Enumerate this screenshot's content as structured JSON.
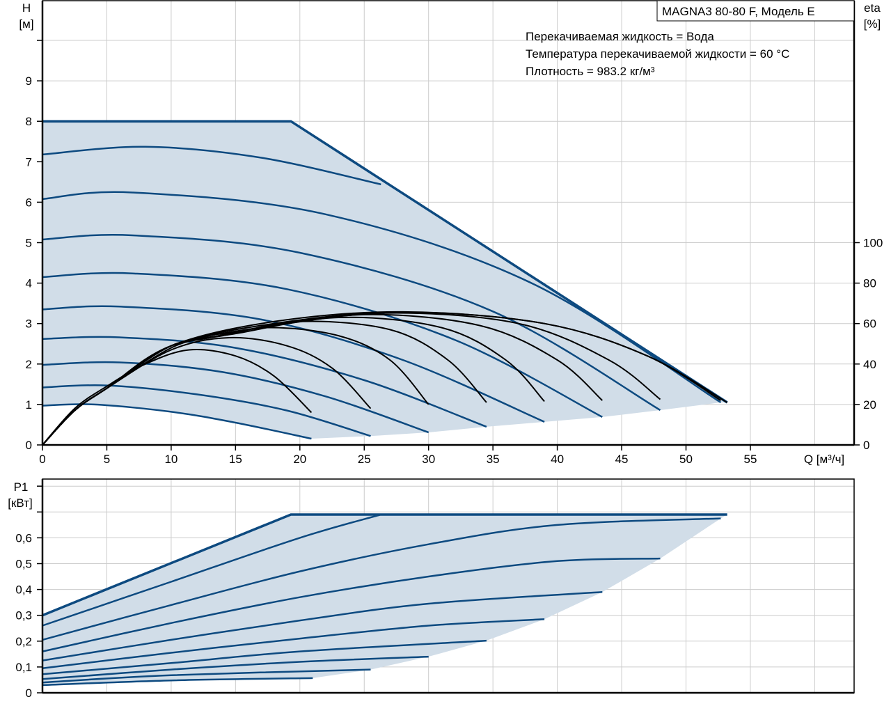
{
  "colors": {
    "fill": "#d1dde8",
    "curve": "#0d4a80",
    "eta_curve": "#000000",
    "grid": "#cccccc"
  },
  "chart_data": [
    {
      "type": "line",
      "title": "MAGNA3 80-80 F, Модель E",
      "info": [
        "Перекачиваемая жидкость = Вода",
        "Температура перекачиваемой жидкости = 60 °C",
        "Плотность = 983.2 кг/м³"
      ],
      "xlabel": "Q [м³/ч]",
      "ylabel": "H",
      "ylabel_unit": "[м]",
      "y2label": "eta",
      "y2label_unit": "[%]",
      "xlim": [
        0,
        63
      ],
      "ylim": [
        0,
        11
      ],
      "y2lim": [
        0,
        220
      ],
      "xticks": [
        0,
        5,
        10,
        15,
        20,
        25,
        30,
        35,
        40,
        45,
        50,
        55
      ],
      "yticks": [
        0,
        1,
        2,
        3,
        4,
        5,
        6,
        7,
        8,
        9
      ],
      "y2ticks": [
        0,
        20,
        40,
        60,
        80,
        100
      ],
      "grid": true,
      "max_curve": [
        [
          0,
          8
        ],
        [
          19.3,
          8
        ],
        [
          53.2,
          1.05
        ]
      ],
      "head_curves": [
        [
          [
            0,
            7.18
          ],
          [
            8,
            7.37
          ],
          [
            17,
            7.1
          ],
          [
            26.3,
            6.44
          ]
        ],
        [
          [
            0,
            6.08
          ],
          [
            7,
            6.24
          ],
          [
            22,
            5.7
          ],
          [
            38,
            4.0
          ],
          [
            52.7,
            1.05
          ]
        ],
        [
          [
            0,
            5.08
          ],
          [
            7,
            5.18
          ],
          [
            20,
            4.75
          ],
          [
            35,
            3.3
          ],
          [
            48,
            0.86
          ]
        ],
        [
          [
            0,
            4.15
          ],
          [
            7,
            4.24
          ],
          [
            19,
            3.85
          ],
          [
            32,
            2.6
          ],
          [
            43.5,
            0.69
          ]
        ],
        [
          [
            0,
            3.35
          ],
          [
            6,
            3.42
          ],
          [
            17,
            3.1
          ],
          [
            28,
            2.1
          ],
          [
            39,
            0.57
          ]
        ],
        [
          [
            0,
            2.62
          ],
          [
            6,
            2.66
          ],
          [
            15,
            2.4
          ],
          [
            25,
            1.6
          ],
          [
            34.5,
            0.45
          ]
        ],
        [
          [
            0,
            1.98
          ],
          [
            6,
            2.04
          ],
          [
            14,
            1.8
          ],
          [
            22,
            1.2
          ],
          [
            30,
            0.31
          ]
        ],
        [
          [
            0,
            1.42
          ],
          [
            5,
            1.47
          ],
          [
            12,
            1.25
          ],
          [
            19,
            0.85
          ],
          [
            25.5,
            0.22
          ]
        ],
        [
          [
            0,
            0.97
          ],
          [
            4,
            1.0
          ],
          [
            10,
            0.82
          ],
          [
            15,
            0.55
          ],
          [
            20.9,
            0.155
          ]
        ]
      ],
      "eta_curves": [
        [
          [
            0,
            0
          ],
          [
            2.5,
            17
          ],
          [
            5,
            28
          ],
          [
            10,
            49
          ],
          [
            18,
            61
          ],
          [
            28,
            65.8
          ],
          [
            39,
            60
          ],
          [
            47,
            44
          ],
          [
            53.2,
            21
          ]
        ],
        [
          [
            0,
            0
          ],
          [
            2.5,
            17
          ],
          [
            5,
            28
          ],
          [
            10,
            49
          ],
          [
            18,
            60
          ],
          [
            28,
            65.6
          ],
          [
            39,
            60
          ],
          [
            47,
            44
          ],
          [
            52.7,
            22
          ]
        ],
        [
          [
            0,
            0
          ],
          [
            2.5,
            17
          ],
          [
            5,
            28
          ],
          [
            10,
            49
          ],
          [
            18,
            59
          ],
          [
            27,
            65.2
          ],
          [
            37,
            60
          ],
          [
            44,
            42
          ],
          [
            48,
            22.5
          ]
        ],
        [
          [
            0,
            0
          ],
          [
            2.5,
            17
          ],
          [
            5,
            28
          ],
          [
            10,
            49
          ],
          [
            16,
            57
          ],
          [
            25,
            64.4
          ],
          [
            34,
            59
          ],
          [
            40,
            42
          ],
          [
            43.5,
            22
          ]
        ],
        [
          [
            0,
            0
          ],
          [
            2.5,
            17
          ],
          [
            5,
            28
          ],
          [
            10,
            49
          ],
          [
            15,
            55
          ],
          [
            23,
            63
          ],
          [
            31,
            58
          ],
          [
            36,
            42
          ],
          [
            39,
            21.5
          ]
        ],
        [
          [
            0,
            0
          ],
          [
            2.5,
            17
          ],
          [
            5,
            28
          ],
          [
            10,
            49
          ],
          [
            14,
            54
          ],
          [
            20,
            61
          ],
          [
            27,
            57
          ],
          [
            31.5,
            42
          ],
          [
            34.5,
            21
          ]
        ],
        [
          [
            0,
            0
          ],
          [
            2.5,
            17
          ],
          [
            5,
            28
          ],
          [
            10,
            48
          ],
          [
            13,
            53
          ],
          [
            17.5,
            58
          ],
          [
            23,
            54
          ],
          [
            27,
            42
          ],
          [
            30,
            20
          ]
        ],
        [
          [
            0,
            0
          ],
          [
            2.5,
            17
          ],
          [
            5,
            28
          ],
          [
            10,
            47
          ],
          [
            14.5,
            53
          ],
          [
            19,
            49
          ],
          [
            22.5,
            38
          ],
          [
            25.5,
            18
          ]
        ],
        [
          [
            0,
            0
          ],
          [
            2.5,
            18
          ],
          [
            5,
            29
          ],
          [
            8,
            40
          ],
          [
            11.4,
            47
          ],
          [
            15,
            44
          ],
          [
            18,
            34
          ],
          [
            20.9,
            16
          ]
        ]
      ]
    },
    {
      "type": "line",
      "ylabel": "P1",
      "ylabel_unit": "[кВт]",
      "xlim": [
        0,
        63
      ],
      "ylim": [
        0,
        0.82
      ],
      "yticks": [
        0,
        0.1,
        0.2,
        0.3,
        0.4,
        0.5,
        0.6,
        0.7,
        0.8
      ],
      "ytick_labels": [
        "0",
        "0,1",
        "0,2",
        "0,3",
        "0,4",
        "0,5",
        "0,6",
        "",
        ""
      ],
      "xticks": [
        0,
        5,
        10,
        15,
        20,
        25,
        30,
        35,
        40,
        45,
        50,
        55,
        60
      ],
      "grid": true,
      "max_curve": [
        [
          0,
          0.3
        ],
        [
          19.3,
          0.69
        ],
        [
          53.2,
          0.69
        ]
      ],
      "power_curves": [
        [
          [
            0,
            0.26
          ],
          [
            10,
            0.43
          ],
          [
            20,
            0.6
          ],
          [
            26.3,
            0.69
          ]
        ],
        [
          [
            0,
            0.205
          ],
          [
            10,
            0.34
          ],
          [
            20,
            0.47
          ],
          [
            30,
            0.575
          ],
          [
            40,
            0.65
          ],
          [
            52.7,
            0.675
          ]
        ],
        [
          [
            0,
            0.16
          ],
          [
            10,
            0.27
          ],
          [
            20,
            0.37
          ],
          [
            30,
            0.45
          ],
          [
            40,
            0.51
          ],
          [
            48,
            0.52
          ]
        ],
        [
          [
            0,
            0.125
          ],
          [
            10,
            0.205
          ],
          [
            20,
            0.28
          ],
          [
            30,
            0.345
          ],
          [
            43.5,
            0.39
          ]
        ],
        [
          [
            0,
            0.095
          ],
          [
            10,
            0.155
          ],
          [
            20,
            0.21
          ],
          [
            30,
            0.26
          ],
          [
            39,
            0.285
          ]
        ],
        [
          [
            0,
            0.072
          ],
          [
            10,
            0.115
          ],
          [
            20,
            0.16
          ],
          [
            34.5,
            0.202
          ]
        ],
        [
          [
            0,
            0.053
          ],
          [
            10,
            0.09
          ],
          [
            20,
            0.12
          ],
          [
            30,
            0.14
          ]
        ],
        [
          [
            0,
            0.04
          ],
          [
            10,
            0.068
          ],
          [
            25.5,
            0.09
          ]
        ],
        [
          [
            0,
            0.03
          ],
          [
            10,
            0.048
          ],
          [
            21,
            0.057
          ]
        ]
      ]
    }
  ]
}
